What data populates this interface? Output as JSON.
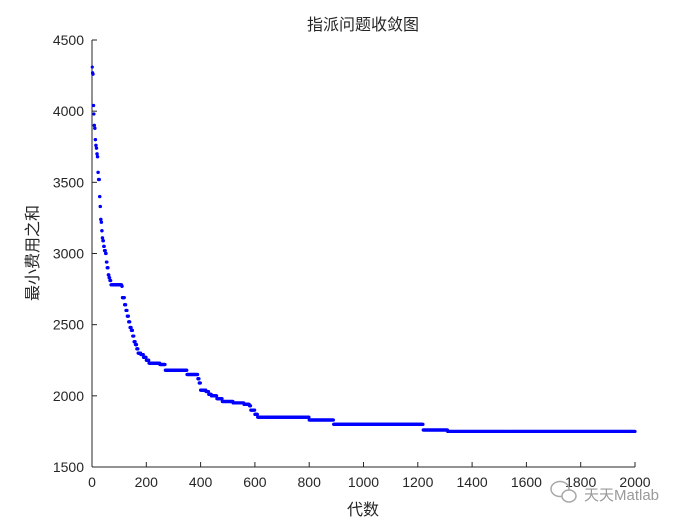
{
  "chart_data": {
    "type": "scatter",
    "title": "指派问题收敛图",
    "xlabel": "代数",
    "ylabel": "最小费用之和",
    "xlim": [
      0,
      2000
    ],
    "ylim": [
      1500,
      4500
    ],
    "xticks": [
      0,
      200,
      400,
      600,
      800,
      1000,
      1200,
      1400,
      1600,
      1800,
      2000
    ],
    "yticks": [
      1500,
      2000,
      2500,
      3000,
      3500,
      4000,
      4500
    ],
    "grid": false,
    "legend": "none",
    "marker_color": "#0000ff",
    "points": [
      [
        1,
        4310
      ],
      [
        2,
        4270
      ],
      [
        3,
        4260
      ],
      [
        5,
        4040
      ],
      [
        7,
        3980
      ],
      [
        8,
        3900
      ],
      [
        10,
        3880
      ],
      [
        12,
        3800
      ],
      [
        14,
        3760
      ],
      [
        16,
        3740
      ],
      [
        18,
        3700
      ],
      [
        20,
        3680
      ],
      [
        22,
        3570
      ],
      [
        24,
        3520
      ],
      [
        26,
        3520
      ],
      [
        28,
        3400
      ],
      [
        30,
        3330
      ],
      [
        32,
        3240
      ],
      [
        34,
        3220
      ],
      [
        36,
        3160
      ],
      [
        38,
        3110
      ],
      [
        40,
        3090
      ],
      [
        43,
        3050
      ],
      [
        46,
        3020
      ],
      [
        50,
        3000
      ],
      [
        53,
        2940
      ],
      [
        56,
        2900
      ],
      [
        60,
        2850
      ],
      [
        63,
        2830
      ],
      [
        66,
        2810
      ],
      [
        70,
        2780
      ],
      [
        110,
        2770
      ],
      [
        112,
        2690
      ],
      [
        115,
        2690
      ],
      [
        120,
        2640
      ],
      [
        125,
        2600
      ],
      [
        130,
        2560
      ],
      [
        135,
        2520
      ],
      [
        140,
        2480
      ],
      [
        145,
        2460
      ],
      [
        150,
        2420
      ],
      [
        155,
        2380
      ],
      [
        160,
        2360
      ],
      [
        165,
        2330
      ],
      [
        170,
        2300
      ],
      [
        180,
        2290
      ],
      [
        190,
        2270
      ],
      [
        200,
        2250
      ],
      [
        210,
        2230
      ],
      [
        250,
        2220
      ],
      [
        270,
        2180
      ],
      [
        350,
        2150
      ],
      [
        385,
        2150
      ],
      [
        390,
        2120
      ],
      [
        395,
        2090
      ],
      [
        400,
        2040
      ],
      [
        420,
        2030
      ],
      [
        430,
        2010
      ],
      [
        440,
        2000
      ],
      [
        460,
        1980
      ],
      [
        480,
        1960
      ],
      [
        520,
        1950
      ],
      [
        560,
        1940
      ],
      [
        580,
        1930
      ],
      [
        585,
        1900
      ],
      [
        600,
        1870
      ],
      [
        605,
        1870
      ],
      [
        610,
        1850
      ],
      [
        800,
        1830
      ],
      [
        890,
        1800
      ],
      [
        1220,
        1760
      ],
      [
        1310,
        1750
      ],
      [
        2000,
        1750
      ]
    ],
    "watermark": "天天Matlab"
  }
}
